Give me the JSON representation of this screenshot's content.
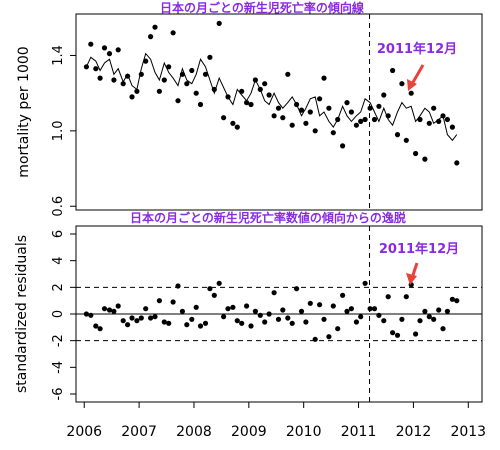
{
  "chart_data": [
    {
      "type": "scatter",
      "title": "日本の月ごとの新生児死亡率の傾向線",
      "xlabel": "",
      "ylabel": "mortality per 1000",
      "xlim": [
        2005.85,
        2013.25
      ],
      "ylim": [
        0.58,
        1.62
      ],
      "yticks": [
        0.6,
        1.0,
        1.4
      ],
      "yticks_labels": [
        "0.6",
        "1.0",
        "1.4"
      ],
      "annotation": "2011年12月",
      "vline_x": 2011.2,
      "series": [
        {
          "kind": "points",
          "x": [
            2006.04,
            2006.12,
            2006.21,
            2006.29,
            2006.37,
            2006.46,
            2006.54,
            2006.62,
            2006.71,
            2006.79,
            2006.87,
            2006.96,
            2007.04,
            2007.12,
            2007.21,
            2007.29,
            2007.37,
            2007.46,
            2007.54,
            2007.62,
            2007.71,
            2007.79,
            2007.87,
            2007.96,
            2008.04,
            2008.12,
            2008.21,
            2008.29,
            2008.37,
            2008.46,
            2008.54,
            2008.62,
            2008.71,
            2008.79,
            2008.87,
            2008.96,
            2009.04,
            2009.12,
            2009.21,
            2009.29,
            2009.37,
            2009.46,
            2009.54,
            2009.62,
            2009.71,
            2009.79,
            2009.87,
            2009.96,
            2010.04,
            2010.12,
            2010.21,
            2010.29,
            2010.37,
            2010.46,
            2010.54,
            2010.62,
            2010.71,
            2010.79,
            2010.87,
            2010.96,
            2011.04,
            2011.12,
            2011.21,
            2011.29,
            2011.37,
            2011.46,
            2011.54,
            2011.62,
            2011.71,
            2011.79,
            2011.87,
            2011.96,
            2012.04,
            2012.12,
            2012.21,
            2012.29,
            2012.37,
            2012.46,
            2012.54,
            2012.62,
            2012.71,
            2012.79
          ],
          "y": [
            1.34,
            1.46,
            1.33,
            1.28,
            1.44,
            1.41,
            1.27,
            1.43,
            1.25,
            1.29,
            1.18,
            1.21,
            1.3,
            1.37,
            1.5,
            1.55,
            1.21,
            1.27,
            1.34,
            1.52,
            1.16,
            1.3,
            1.25,
            1.32,
            1.2,
            1.14,
            1.3,
            1.39,
            1.22,
            1.57,
            1.07,
            1.18,
            1.04,
            1.02,
            1.21,
            1.15,
            1.14,
            1.27,
            1.22,
            1.25,
            1.19,
            1.08,
            1.12,
            1.07,
            1.3,
            1.03,
            1.14,
            1.11,
            1.04,
            1.1,
            1.0,
            1.17,
            1.28,
            1.12,
            0.99,
            1.06,
            0.92,
            1.15,
            1.1,
            1.03,
            1.05,
            1.06,
            1.12,
            1.06,
            1.13,
            1.19,
            1.08,
            1.32,
            0.98,
            1.25,
            0.95,
            1.2,
            0.88,
            1.06,
            0.85,
            1.04,
            1.12,
            1.05,
            1.08,
            1.06,
            1.02,
            0.83
          ]
        },
        {
          "kind": "line",
          "x": [
            2006.04,
            2006.12,
            2006.21,
            2006.29,
            2006.37,
            2006.46,
            2006.54,
            2006.62,
            2006.71,
            2006.79,
            2006.87,
            2006.96,
            2007.04,
            2007.12,
            2007.21,
            2007.29,
            2007.37,
            2007.46,
            2007.54,
            2007.62,
            2007.71,
            2007.79,
            2007.87,
            2007.96,
            2008.04,
            2008.12,
            2008.21,
            2008.29,
            2008.37,
            2008.46,
            2008.54,
            2008.62,
            2008.71,
            2008.79,
            2008.87,
            2008.96,
            2009.04,
            2009.12,
            2009.21,
            2009.29,
            2009.37,
            2009.46,
            2009.54,
            2009.62,
            2009.71,
            2009.79,
            2009.87,
            2009.96,
            2010.04,
            2010.12,
            2010.21,
            2010.29,
            2010.37,
            2010.46,
            2010.54,
            2010.62,
            2010.71,
            2010.79,
            2010.87,
            2010.96,
            2011.04,
            2011.12,
            2011.21,
            2011.29,
            2011.37,
            2011.46,
            2011.54,
            2011.62,
            2011.71,
            2011.79,
            2011.87,
            2011.96,
            2012.04,
            2012.12,
            2012.21,
            2012.29,
            2012.37,
            2012.46,
            2012.54,
            2012.62,
            2012.71,
            2012.79
          ],
          "y": [
            1.34,
            1.39,
            1.37,
            1.32,
            1.36,
            1.38,
            1.3,
            1.33,
            1.26,
            1.3,
            1.24,
            1.22,
            1.33,
            1.41,
            1.38,
            1.31,
            1.27,
            1.36,
            1.31,
            1.28,
            1.24,
            1.33,
            1.27,
            1.25,
            1.3,
            1.38,
            1.34,
            1.27,
            1.2,
            1.28,
            1.23,
            1.18,
            1.14,
            1.22,
            1.19,
            1.16,
            1.2,
            1.27,
            1.22,
            1.16,
            1.14,
            1.2,
            1.15,
            1.12,
            1.15,
            1.18,
            1.14,
            1.08,
            1.12,
            1.17,
            1.18,
            1.08,
            1.1,
            1.05,
            1.02,
            1.06,
            1.13,
            1.08,
            1.05,
            1.08,
            1.1,
            1.17,
            1.15,
            1.1,
            1.05,
            1.12,
            1.06,
            1.03,
            1.1,
            1.15,
            1.12,
            1.13,
            1.05,
            1.08,
            1.12,
            1.1,
            1.04,
            1.06,
            1.08,
            0.98,
            0.95,
            0.98
          ]
        }
      ]
    },
    {
      "type": "scatter",
      "title": "日本の月ごとの新生児死亡率数値の傾向からの逸脱",
      "xlabel": "",
      "ylabel": "standardized residuals",
      "xlim": [
        2005.85,
        2013.25
      ],
      "ylim": [
        -6.6,
        6.6
      ],
      "yticks": [
        -6,
        -4,
        -2,
        0,
        2,
        4,
        6
      ],
      "yticks_labels": [
        "-6",
        "-4",
        "-2",
        "0",
        "2",
        "4",
        "6"
      ],
      "xticks": [
        2006,
        2007,
        2008,
        2009,
        2010,
        2011,
        2012,
        2013
      ],
      "xticks_labels": [
        "2006",
        "2007",
        "2008",
        "2009",
        "2010",
        "2011",
        "2012",
        "2013"
      ],
      "hlines_dashed": [
        2,
        -2
      ],
      "hline_solid": 0,
      "vline_x": 2011.2,
      "annotation": "2011年12月",
      "series": [
        {
          "kind": "points",
          "x": [
            2006.04,
            2006.12,
            2006.21,
            2006.29,
            2006.37,
            2006.46,
            2006.54,
            2006.62,
            2006.71,
            2006.79,
            2006.87,
            2006.96,
            2007.04,
            2007.12,
            2007.21,
            2007.29,
            2007.37,
            2007.46,
            2007.54,
            2007.62,
            2007.71,
            2007.79,
            2007.87,
            2007.96,
            2008.04,
            2008.12,
            2008.21,
            2008.29,
            2008.37,
            2008.46,
            2008.54,
            2008.62,
            2008.71,
            2008.79,
            2008.87,
            2008.96,
            2009.04,
            2009.12,
            2009.21,
            2009.29,
            2009.37,
            2009.46,
            2009.54,
            2009.62,
            2009.71,
            2009.79,
            2009.87,
            2009.96,
            2010.04,
            2010.12,
            2010.21,
            2010.29,
            2010.37,
            2010.46,
            2010.54,
            2010.62,
            2010.71,
            2010.79,
            2010.87,
            2010.96,
            2011.04,
            2011.12,
            2011.21,
            2011.29,
            2011.37,
            2011.46,
            2011.54,
            2011.62,
            2011.71,
            2011.79,
            2011.87,
            2011.96,
            2012.04,
            2012.12,
            2012.21,
            2012.29,
            2012.37,
            2012.46,
            2012.54,
            2012.62,
            2012.71,
            2012.79
          ],
          "y": [
            0.0,
            -0.1,
            -0.9,
            -1.1,
            0.4,
            0.3,
            0.2,
            0.6,
            -0.5,
            -0.8,
            -0.3,
            -0.5,
            -0.3,
            0.4,
            -0.3,
            -0.2,
            1.0,
            -0.6,
            -0.7,
            0.9,
            2.1,
            0.2,
            -0.8,
            -0.4,
            0.5,
            -0.9,
            -0.7,
            1.9,
            1.4,
            2.3,
            -0.2,
            0.4,
            0.5,
            -0.5,
            -0.7,
            0.6,
            -0.9,
            0.2,
            -0.1,
            -0.6,
            0.0,
            1.6,
            -0.4,
            0.3,
            -0.3,
            -0.7,
            1.9,
            0.2,
            -0.6,
            0.8,
            -1.9,
            0.7,
            -0.4,
            -1.7,
            0.6,
            -1.1,
            1.4,
            0.2,
            0.4,
            -0.6,
            -0.2,
            2.3,
            0.4,
            0.4,
            -0.1,
            -0.5,
            1.3,
            -1.4,
            -1.6,
            -0.4,
            1.3,
            2.2,
            -1.5,
            -0.5,
            0.2,
            -0.2,
            -0.4,
            0.3,
            -1.1,
            0.2,
            1.1,
            1.0
          ]
        }
      ]
    }
  ]
}
